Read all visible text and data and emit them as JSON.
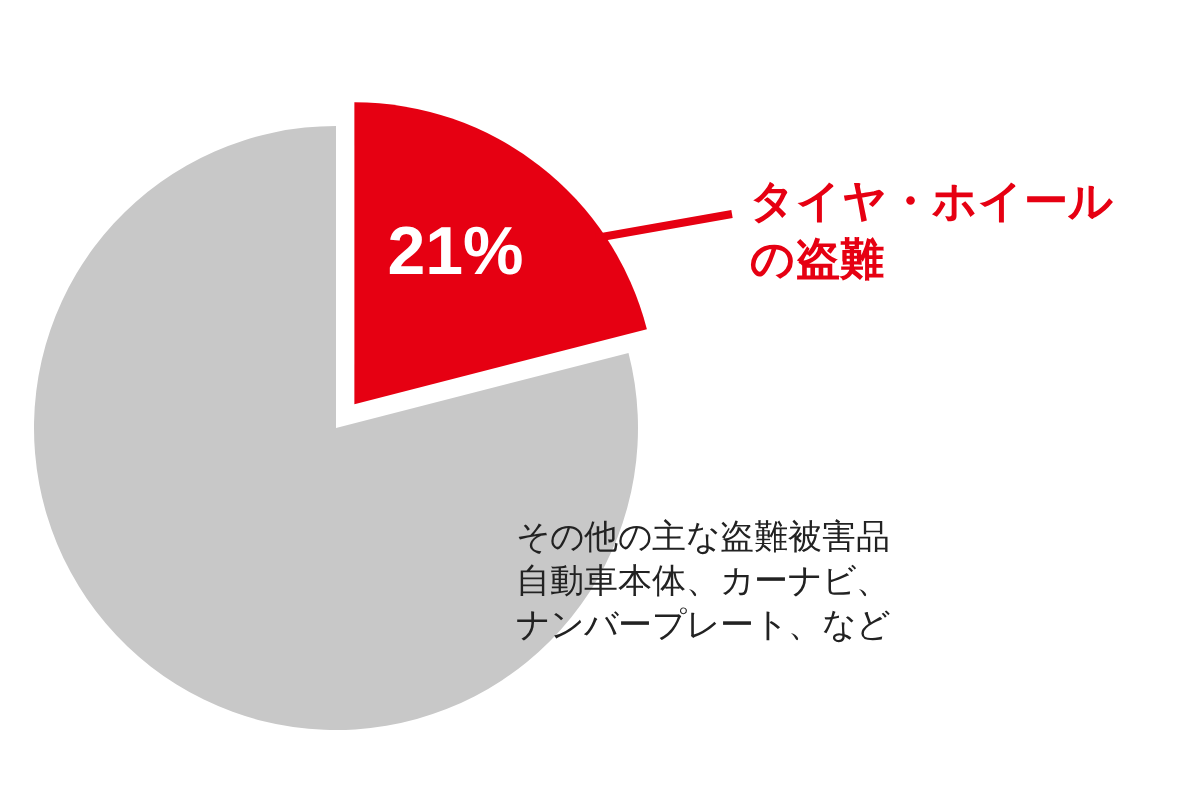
{
  "chart_data": {
    "type": "pie",
    "categories": [
      "タイヤ・ホイールの盗難",
      "その他の主な盗難被害品自動車本体、カーナビ、ナンバープレート、など"
    ],
    "values": [
      21,
      79
    ],
    "colors": [
      "#e60012",
      "#c8c8c8"
    ],
    "value_labels": [
      "21%",
      null
    ],
    "legend": false
  }
}
